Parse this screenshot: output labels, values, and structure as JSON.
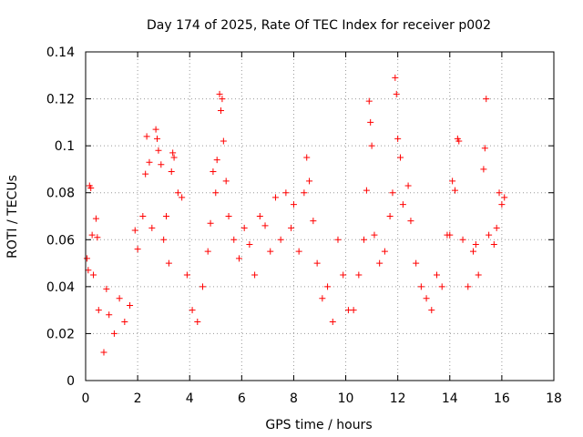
{
  "chart_data": {
    "type": "scatter",
    "title": "Day 174 of 2025, Rate Of TEC Index for receiver p002",
    "xlabel": "GPS time / hours",
    "ylabel": "ROTI / TECUs",
    "xlim": [
      0,
      18
    ],
    "ylim": [
      0,
      0.14
    ],
    "x_ticks": [
      0,
      2,
      4,
      6,
      8,
      10,
      12,
      14,
      16,
      18
    ],
    "y_ticks": [
      0,
      0.02,
      0.04,
      0.06,
      0.08,
      0.1,
      0.12,
      0.14
    ],
    "x_tick_labels": [
      "0",
      "2",
      "4",
      "6",
      "8",
      "10",
      "12",
      "14",
      "16",
      "18"
    ],
    "y_tick_labels": [
      "0",
      "0.02",
      "0.04",
      "0.06",
      "0.08",
      "0.1",
      "0.12",
      "0.14"
    ],
    "grid": true,
    "marker": "+",
    "marker_color": "#ff0000",
    "series": [
      {
        "points": [
          [
            0.05,
            0.052
          ],
          [
            0.1,
            0.047
          ],
          [
            0.15,
            0.083
          ],
          [
            0.2,
            0.082
          ],
          [
            0.25,
            0.062
          ],
          [
            0.3,
            0.045
          ],
          [
            0.4,
            0.069
          ],
          [
            0.45,
            0.061
          ],
          [
            0.5,
            0.03
          ],
          [
            0.7,
            0.012
          ],
          [
            0.8,
            0.039
          ],
          [
            0.9,
            0.028
          ],
          [
            1.1,
            0.02
          ],
          [
            1.3,
            0.035
          ],
          [
            1.5,
            0.025
          ],
          [
            1.7,
            0.032
          ],
          [
            1.9,
            0.064
          ],
          [
            2.0,
            0.056
          ],
          [
            2.2,
            0.07
          ],
          [
            2.3,
            0.088
          ],
          [
            2.35,
            0.104
          ],
          [
            2.45,
            0.093
          ],
          [
            2.55,
            0.065
          ],
          [
            2.7,
            0.107
          ],
          [
            2.75,
            0.103
          ],
          [
            2.8,
            0.098
          ],
          [
            2.9,
            0.092
          ],
          [
            3.0,
            0.06
          ],
          [
            3.1,
            0.07
          ],
          [
            3.2,
            0.05
          ],
          [
            3.3,
            0.089
          ],
          [
            3.35,
            0.097
          ],
          [
            3.4,
            0.095
          ],
          [
            3.55,
            0.08
          ],
          [
            3.7,
            0.078
          ],
          [
            3.9,
            0.045
          ],
          [
            4.1,
            0.03
          ],
          [
            4.3,
            0.025
          ],
          [
            4.5,
            0.04
          ],
          [
            4.7,
            0.055
          ],
          [
            4.8,
            0.067
          ],
          [
            4.9,
            0.089
          ],
          [
            5.0,
            0.08
          ],
          [
            5.05,
            0.094
          ],
          [
            5.15,
            0.122
          ],
          [
            5.2,
            0.115
          ],
          [
            5.25,
            0.12
          ],
          [
            5.3,
            0.102
          ],
          [
            5.4,
            0.085
          ],
          [
            5.5,
            0.07
          ],
          [
            5.7,
            0.06
          ],
          [
            5.9,
            0.052
          ],
          [
            6.1,
            0.065
          ],
          [
            6.3,
            0.058
          ],
          [
            6.5,
            0.045
          ],
          [
            6.7,
            0.07
          ],
          [
            6.9,
            0.066
          ],
          [
            7.1,
            0.055
          ],
          [
            7.3,
            0.078
          ],
          [
            7.5,
            0.06
          ],
          [
            7.7,
            0.08
          ],
          [
            7.9,
            0.065
          ],
          [
            8.0,
            0.075
          ],
          [
            8.2,
            0.055
          ],
          [
            8.4,
            0.08
          ],
          [
            8.5,
            0.095
          ],
          [
            8.6,
            0.085
          ],
          [
            8.75,
            0.068
          ],
          [
            8.9,
            0.05
          ],
          [
            9.1,
            0.035
          ],
          [
            9.3,
            0.04
          ],
          [
            9.5,
            0.025
          ],
          [
            9.7,
            0.06
          ],
          [
            9.9,
            0.045
          ],
          [
            10.1,
            0.03
          ],
          [
            10.3,
            0.03
          ],
          [
            10.5,
            0.045
          ],
          [
            10.7,
            0.06
          ],
          [
            10.8,
            0.081
          ],
          [
            10.9,
            0.119
          ],
          [
            10.95,
            0.11
          ],
          [
            11.0,
            0.1
          ],
          [
            11.1,
            0.062
          ],
          [
            11.3,
            0.05
          ],
          [
            11.5,
            0.055
          ],
          [
            11.7,
            0.07
          ],
          [
            11.8,
            0.08
          ],
          [
            11.9,
            0.129
          ],
          [
            11.95,
            0.122
          ],
          [
            12.0,
            0.103
          ],
          [
            12.1,
            0.095
          ],
          [
            12.2,
            0.075
          ],
          [
            12.4,
            0.083
          ],
          [
            12.5,
            0.068
          ],
          [
            12.7,
            0.05
          ],
          [
            12.9,
            0.04
          ],
          [
            13.1,
            0.035
          ],
          [
            13.3,
            0.03
          ],
          [
            13.5,
            0.045
          ],
          [
            13.7,
            0.04
          ],
          [
            13.9,
            0.062
          ],
          [
            14.0,
            0.062
          ],
          [
            14.1,
            0.085
          ],
          [
            14.2,
            0.081
          ],
          [
            14.3,
            0.103
          ],
          [
            14.35,
            0.102
          ],
          [
            14.5,
            0.06
          ],
          [
            14.7,
            0.04
          ],
          [
            14.9,
            0.055
          ],
          [
            15.0,
            0.058
          ],
          [
            15.1,
            0.045
          ],
          [
            15.3,
            0.09
          ],
          [
            15.35,
            0.099
          ],
          [
            15.4,
            0.12
          ],
          [
            15.5,
            0.062
          ],
          [
            15.7,
            0.058
          ],
          [
            15.8,
            0.065
          ],
          [
            15.9,
            0.08
          ],
          [
            16.0,
            0.075
          ],
          [
            16.1,
            0.078
          ]
        ]
      }
    ]
  }
}
